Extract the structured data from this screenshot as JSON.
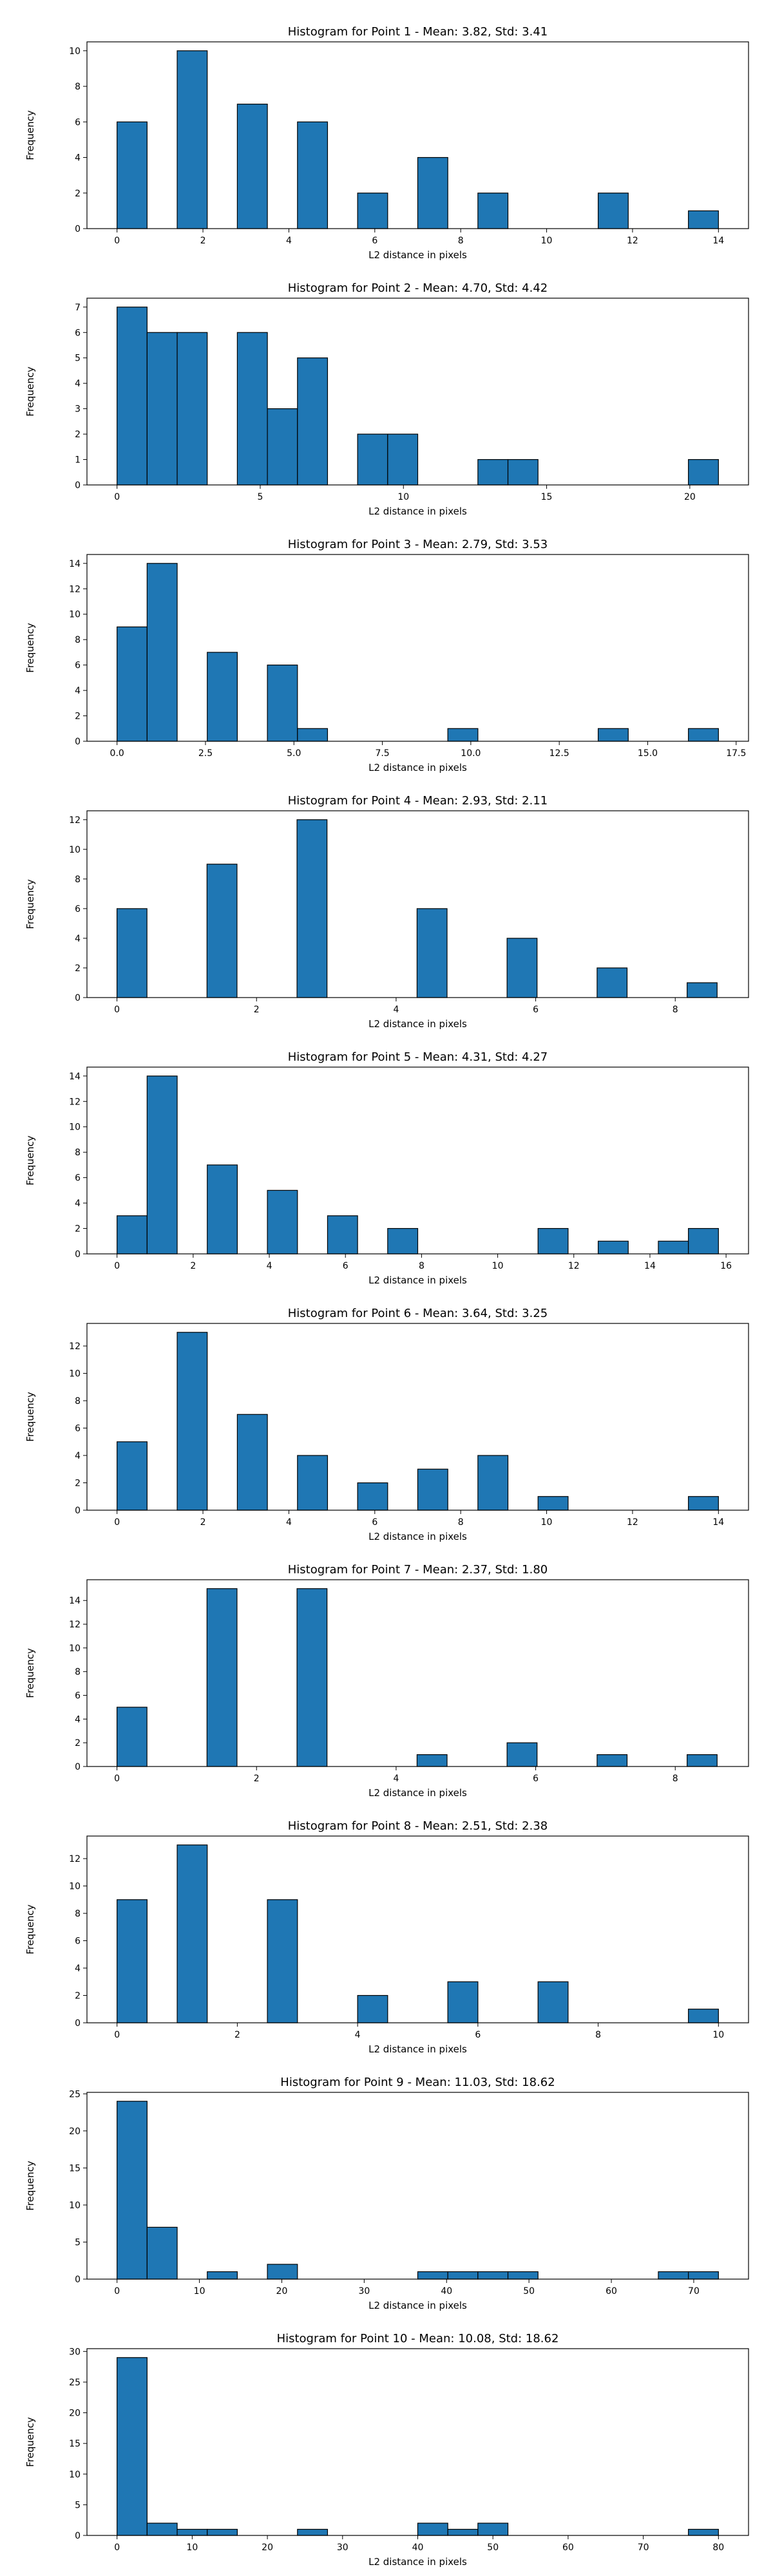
{
  "chart_data": [
    {
      "type": "bar",
      "title": "Histogram for Point 1 - Mean: 3.82, Std: 3.41",
      "xlabel": "L2 distance in pixels",
      "ylabel": "Frequency",
      "xlim": [
        -0.7,
        14.7
      ],
      "ylim": [
        0,
        10.5
      ],
      "xticks": [
        0,
        2,
        4,
        6,
        8,
        10,
        12,
        14
      ],
      "yticks": [
        0,
        2,
        4,
        6,
        8,
        10
      ],
      "bin_width": 0.7,
      "bins": [
        {
          "x": 0.0,
          "count": 6
        },
        {
          "x": 1.4,
          "count": 10
        },
        {
          "x": 2.8,
          "count": 7
        },
        {
          "x": 4.2,
          "count": 6
        },
        {
          "x": 5.6,
          "count": 2
        },
        {
          "x": 7.0,
          "count": 4
        },
        {
          "x": 8.4,
          "count": 2
        },
        {
          "x": 11.2,
          "count": 2
        },
        {
          "x": 13.3,
          "count": 1
        }
      ]
    },
    {
      "type": "bar",
      "title": "Histogram for Point 2 - Mean: 4.70, Std: 4.42",
      "xlabel": "L2 distance in pixels",
      "ylabel": "Frequency",
      "xlim": [
        -1.05,
        22.05
      ],
      "ylim": [
        0,
        7.35
      ],
      "xticks": [
        0,
        5,
        10,
        15,
        20
      ],
      "yticks": [
        0,
        1,
        2,
        3,
        4,
        5,
        6,
        7
      ],
      "bin_width": 1.05,
      "bins": [
        {
          "x": 0.0,
          "count": 7
        },
        {
          "x": 1.05,
          "count": 6
        },
        {
          "x": 2.1,
          "count": 6
        },
        {
          "x": 4.2,
          "count": 6
        },
        {
          "x": 5.25,
          "count": 3
        },
        {
          "x": 6.3,
          "count": 5
        },
        {
          "x": 8.4,
          "count": 2
        },
        {
          "x": 9.45,
          "count": 2
        },
        {
          "x": 12.6,
          "count": 1
        },
        {
          "x": 13.65,
          "count": 1
        },
        {
          "x": 19.95,
          "count": 1
        }
      ]
    },
    {
      "type": "bar",
      "title": "Histogram for Point 3 - Mean: 2.79, Std: 3.53",
      "xlabel": "L2 distance in pixels",
      "ylabel": "Frequency",
      "xlim": [
        -0.85,
        17.85
      ],
      "ylim": [
        0,
        14.7
      ],
      "xticks": [
        0.0,
        2.5,
        5.0,
        7.5,
        10.0,
        12.5,
        15.0,
        17.5
      ],
      "xtick_labels": [
        "0.0",
        "2.5",
        "5.0",
        "7.5",
        "10.0",
        "12.5",
        "15.0",
        "17.5"
      ],
      "yticks": [
        0,
        2,
        4,
        6,
        8,
        10,
        12,
        14
      ],
      "bin_width": 0.85,
      "bins": [
        {
          "x": 0.0,
          "count": 9
        },
        {
          "x": 0.85,
          "count": 14
        },
        {
          "x": 2.55,
          "count": 7
        },
        {
          "x": 4.25,
          "count": 6
        },
        {
          "x": 5.1,
          "count": 1
        },
        {
          "x": 9.35,
          "count": 1
        },
        {
          "x": 13.6,
          "count": 1
        },
        {
          "x": 16.15,
          "count": 1
        }
      ]
    },
    {
      "type": "bar",
      "title": "Histogram for Point 4 - Mean: 2.93, Std: 2.11",
      "xlabel": "L2 distance in pixels",
      "ylabel": "Frequency",
      "xlim": [
        -0.43,
        9.05
      ],
      "ylim": [
        0,
        12.6
      ],
      "xticks": [
        0,
        2,
        4,
        6,
        8
      ],
      "yticks": [
        0,
        2,
        4,
        6,
        8,
        10,
        12
      ],
      "bin_width": 0.43,
      "bins": [
        {
          "x": 0.0,
          "count": 6
        },
        {
          "x": 1.29,
          "count": 9
        },
        {
          "x": 2.58,
          "count": 12
        },
        {
          "x": 4.3,
          "count": 6
        },
        {
          "x": 5.59,
          "count": 4
        },
        {
          "x": 6.88,
          "count": 2
        },
        {
          "x": 8.17,
          "count": 1
        }
      ]
    },
    {
      "type": "bar",
      "title": "Histogram for Point 5 - Mean: 4.31, Std: 4.27",
      "xlabel": "L2 distance in pixels",
      "ylabel": "Frequency",
      "xlim": [
        -0.79,
        16.59
      ],
      "ylim": [
        0,
        14.7
      ],
      "xticks": [
        0,
        2,
        4,
        6,
        8,
        10,
        12,
        14,
        16
      ],
      "yticks": [
        0,
        2,
        4,
        6,
        8,
        10,
        12,
        14
      ],
      "bin_width": 0.79,
      "bins": [
        {
          "x": 0.0,
          "count": 3
        },
        {
          "x": 0.79,
          "count": 14
        },
        {
          "x": 2.37,
          "count": 7
        },
        {
          "x": 3.95,
          "count": 5
        },
        {
          "x": 5.53,
          "count": 3
        },
        {
          "x": 7.11,
          "count": 2
        },
        {
          "x": 11.06,
          "count": 2
        },
        {
          "x": 12.64,
          "count": 1
        },
        {
          "x": 14.22,
          "count": 1
        },
        {
          "x": 15.01,
          "count": 2
        }
      ]
    },
    {
      "type": "bar",
      "title": "Histogram for Point 6 - Mean: 3.64, Std: 3.25",
      "xlabel": "L2 distance in pixels",
      "ylabel": "Frequency",
      "xlim": [
        -0.7,
        14.7
      ],
      "ylim": [
        0,
        13.65
      ],
      "xticks": [
        0,
        2,
        4,
        6,
        8,
        10,
        12,
        14
      ],
      "yticks": [
        0,
        2,
        4,
        6,
        8,
        10,
        12
      ],
      "bin_width": 0.7,
      "bins": [
        {
          "x": 0.0,
          "count": 5
        },
        {
          "x": 1.4,
          "count": 13
        },
        {
          "x": 2.8,
          "count": 7
        },
        {
          "x": 4.2,
          "count": 4
        },
        {
          "x": 5.6,
          "count": 2
        },
        {
          "x": 7.0,
          "count": 3
        },
        {
          "x": 8.4,
          "count": 4
        },
        {
          "x": 9.8,
          "count": 1
        },
        {
          "x": 13.3,
          "count": 1
        }
      ]
    },
    {
      "type": "bar",
      "title": "Histogram for Point 7 - Mean: 2.37, Std: 1.80",
      "xlabel": "L2 distance in pixels",
      "ylabel": "Frequency",
      "xlim": [
        -0.43,
        9.05
      ],
      "ylim": [
        0,
        15.75
      ],
      "xticks": [
        0,
        2,
        4,
        6,
        8
      ],
      "yticks": [
        0,
        2,
        4,
        6,
        8,
        10,
        12,
        14
      ],
      "bin_width": 0.43,
      "bins": [
        {
          "x": 0.0,
          "count": 5
        },
        {
          "x": 1.29,
          "count": 15
        },
        {
          "x": 2.58,
          "count": 15
        },
        {
          "x": 4.3,
          "count": 1
        },
        {
          "x": 5.59,
          "count": 2
        },
        {
          "x": 6.88,
          "count": 1
        },
        {
          "x": 8.17,
          "count": 1
        }
      ]
    },
    {
      "type": "bar",
      "title": "Histogram for Point 8 - Mean: 2.51, Std: 2.38",
      "xlabel": "L2 distance in pixels",
      "ylabel": "Frequency",
      "xlim": [
        -0.5,
        10.5
      ],
      "ylim": [
        0,
        13.65
      ],
      "xticks": [
        0,
        2,
        4,
        6,
        8,
        10
      ],
      "yticks": [
        0,
        2,
        4,
        6,
        8,
        10,
        12
      ],
      "bin_width": 0.5,
      "bins": [
        {
          "x": 0.0,
          "count": 9
        },
        {
          "x": 1.0,
          "count": 13
        },
        {
          "x": 2.5,
          "count": 9
        },
        {
          "x": 4.0,
          "count": 2
        },
        {
          "x": 5.5,
          "count": 3
        },
        {
          "x": 7.0,
          "count": 3
        },
        {
          "x": 9.5,
          "count": 1
        }
      ]
    },
    {
      "type": "bar",
      "title": "Histogram for Point 9 - Mean: 11.03, Std: 18.62",
      "xlabel": "L2 distance in pixels",
      "ylabel": "Frequency",
      "xlim": [
        -3.65,
        76.65
      ],
      "ylim": [
        0,
        25.2
      ],
      "xticks": [
        0,
        10,
        20,
        30,
        40,
        50,
        60,
        70
      ],
      "yticks": [
        0,
        5,
        10,
        15,
        20,
        25
      ],
      "bin_width": 3.65,
      "bins": [
        {
          "x": 0.0,
          "count": 24
        },
        {
          "x": 3.65,
          "count": 7
        },
        {
          "x": 10.95,
          "count": 1
        },
        {
          "x": 18.25,
          "count": 2
        },
        {
          "x": 36.5,
          "count": 1
        },
        {
          "x": 40.15,
          "count": 1
        },
        {
          "x": 43.8,
          "count": 1
        },
        {
          "x": 47.45,
          "count": 1
        },
        {
          "x": 65.7,
          "count": 1
        },
        {
          "x": 69.35,
          "count": 1
        }
      ]
    },
    {
      "type": "bar",
      "title": "Histogram for Point 10 - Mean: 10.08, Std: 18.62",
      "xlabel": "L2 distance in pixels",
      "ylabel": "Frequency",
      "xlim": [
        -4.0,
        84.0
      ],
      "ylim": [
        0,
        30.45
      ],
      "xticks": [
        0,
        10,
        20,
        30,
        40,
        50,
        60,
        70,
        80
      ],
      "yticks": [
        0,
        5,
        10,
        15,
        20,
        25,
        30
      ],
      "bin_width": 4.0,
      "bins": [
        {
          "x": 0.0,
          "count": 29
        },
        {
          "x": 4.0,
          "count": 2
        },
        {
          "x": 8.0,
          "count": 1
        },
        {
          "x": 12.0,
          "count": 1
        },
        {
          "x": 24.0,
          "count": 1
        },
        {
          "x": 40.0,
          "count": 2
        },
        {
          "x": 44.0,
          "count": 1
        },
        {
          "x": 48.0,
          "count": 2
        },
        {
          "x": 76.0,
          "count": 1
        }
      ]
    }
  ],
  "colors": {
    "bar_fill": "#1f77b4",
    "bar_edge": "#000000",
    "axes": "#000000",
    "background": "#ffffff"
  }
}
